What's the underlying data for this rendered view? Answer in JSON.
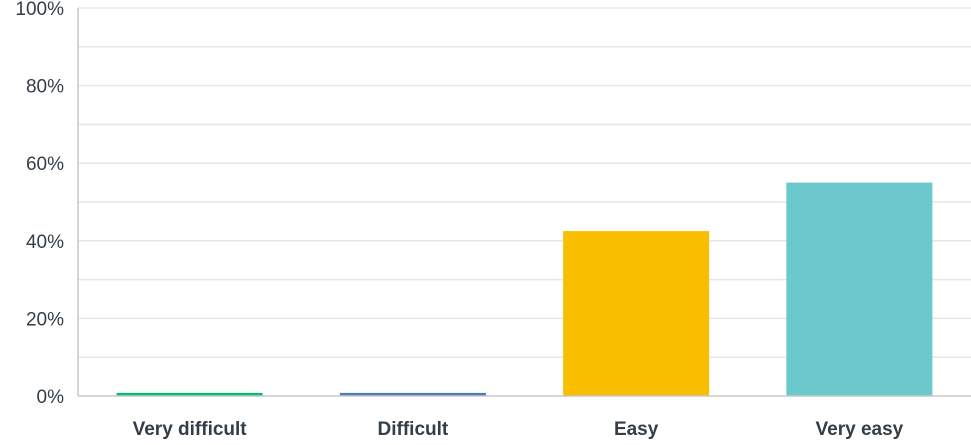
{
  "chart_data": {
    "type": "bar",
    "categories": [
      "Very difficult",
      "Difficult",
      "Easy",
      "Very easy"
    ],
    "values": [
      0.8,
      0.8,
      42.5,
      55.0
    ],
    "colors": [
      "#00bf6f",
      "#507cb6",
      "#f9be00",
      "#6bc8cd"
    ],
    "ylim": [
      0,
      100
    ],
    "yticks": [
      "0%",
      "20%",
      "40%",
      "60%",
      "80%",
      "100%"
    ],
    "ytick_values": [
      0,
      20,
      40,
      60,
      80,
      100
    ],
    "minor_gridlines": [
      10,
      30,
      50,
      70,
      90
    ],
    "grid": true,
    "title": "",
    "xlabel": "",
    "ylabel": ""
  }
}
